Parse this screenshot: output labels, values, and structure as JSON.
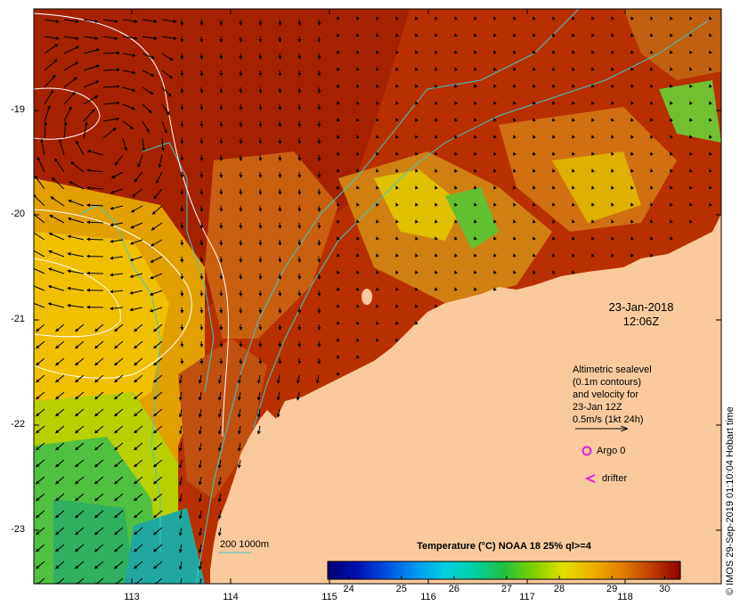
{
  "map": {
    "date": "23-Jan-2018",
    "time": "12:06Z",
    "lat_labels": [
      "-19",
      "-20",
      "-21",
      "-22",
      "-23"
    ],
    "lon_labels": [
      "113",
      "114",
      "115",
      "116",
      "117",
      "118"
    ],
    "colors": {
      "land": "#FBCA9C",
      "velocity_arrow": "#000000",
      "sealevel_contour": "#FFFFFF",
      "bathymetry_contour": "#40C8C8",
      "argo_marker": "#E020E0",
      "drifter_marker": "#E020E0"
    }
  },
  "legend": {
    "lines": [
      "Altimetric sealevel",
      "(0.1m contours)",
      "and velocity for",
      "23-Jan 12Z",
      "0.5m/s  (1kt 24h)"
    ],
    "argo_label": "Argo 0",
    "drifter_label": "drifter",
    "depth_label": "200  1000m"
  },
  "colorbar": {
    "title": "Temperature (°C) NOAA 18 25% ql>=4",
    "ticks": [
      "24",
      "25",
      "26",
      "27",
      "28",
      "29",
      "30"
    ],
    "range": [
      23.6,
      30.3
    ],
    "stops": [
      "#000070",
      "#0010B0",
      "#0050E0",
      "#0098F0",
      "#00D0E0",
      "#00D0A0",
      "#20C040",
      "#80D000",
      "#E0E000",
      "#F0B000",
      "#E08000",
      "#C04000",
      "#900000"
    ]
  },
  "credit": "© IMOS 29-Sep-2019 01:10:04 Hobart time"
}
